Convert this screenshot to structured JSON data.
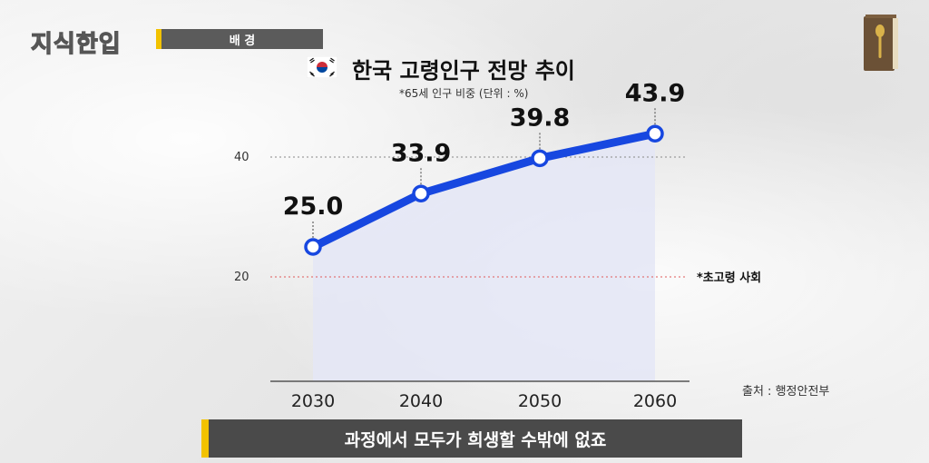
{
  "header": {
    "logo_text": "지식한입",
    "section_label": "배 경"
  },
  "chart_data": {
    "type": "line",
    "title": "한국 고령인구 전망 추이",
    "subtitle": "*65세 인구 비중 (단위 : %)",
    "x": [
      "2030",
      "2040",
      "2050",
      "2060"
    ],
    "series": [
      {
        "values": [
          25.0,
          33.9,
          39.8,
          43.9
        ]
      }
    ],
    "data_labels": [
      "25.0",
      "33.9",
      "39.8",
      "43.9"
    ],
    "y_ticks": [
      "20",
      "40"
    ],
    "ylim": [
      0,
      45
    ],
    "reference_line": {
      "value": 20,
      "label": "*초고령 사회",
      "color": "#e05a5a"
    },
    "line_color": "#1747e0",
    "fill_color": "#e4e6f6",
    "grid": false
  },
  "source": "출처 : 행정안전부",
  "caption": "과정에서 모두가 희생할 수밖에 없죠",
  "colors": {
    "accent": "#f2c200",
    "bar": "#5b5b5b"
  },
  "icons": {
    "book": "book-icon",
    "flag": "korea-flag-icon"
  }
}
